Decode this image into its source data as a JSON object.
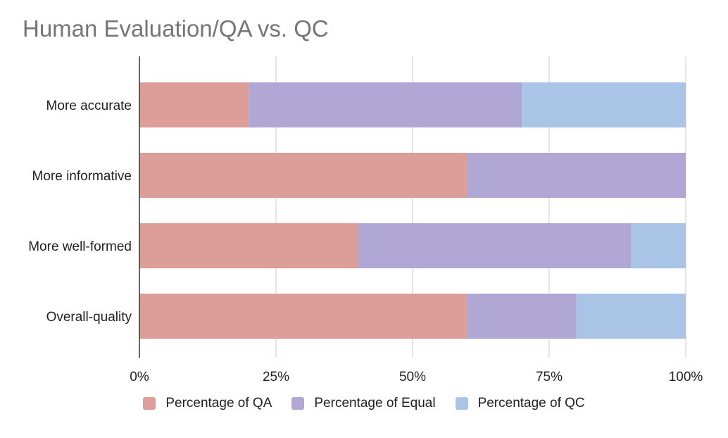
{
  "chart_data": {
    "type": "bar",
    "orientation": "horizontal",
    "stacked": "percent",
    "title": "Human Evaluation/QA vs. QC",
    "categories": [
      "More accurate",
      "More informative",
      "More well-formed",
      "Overall-quality"
    ],
    "series": [
      {
        "name": "Percentage of QA",
        "color": "#dd9e9a",
        "values": [
          20,
          60,
          40,
          60
        ]
      },
      {
        "name": "Percentage of Equal",
        "color": "#b1a7d5",
        "values": [
          50,
          40,
          50,
          20
        ]
      },
      {
        "name": "Percentage of QC",
        "color": "#a9c4e4",
        "values": [
          30,
          0,
          10,
          20
        ]
      }
    ],
    "x_ticks": [
      "0%",
      "25%",
      "50%",
      "75%",
      "100%"
    ],
    "xlim": [
      0,
      100
    ],
    "grid": true,
    "legend_position": "bottom"
  }
}
